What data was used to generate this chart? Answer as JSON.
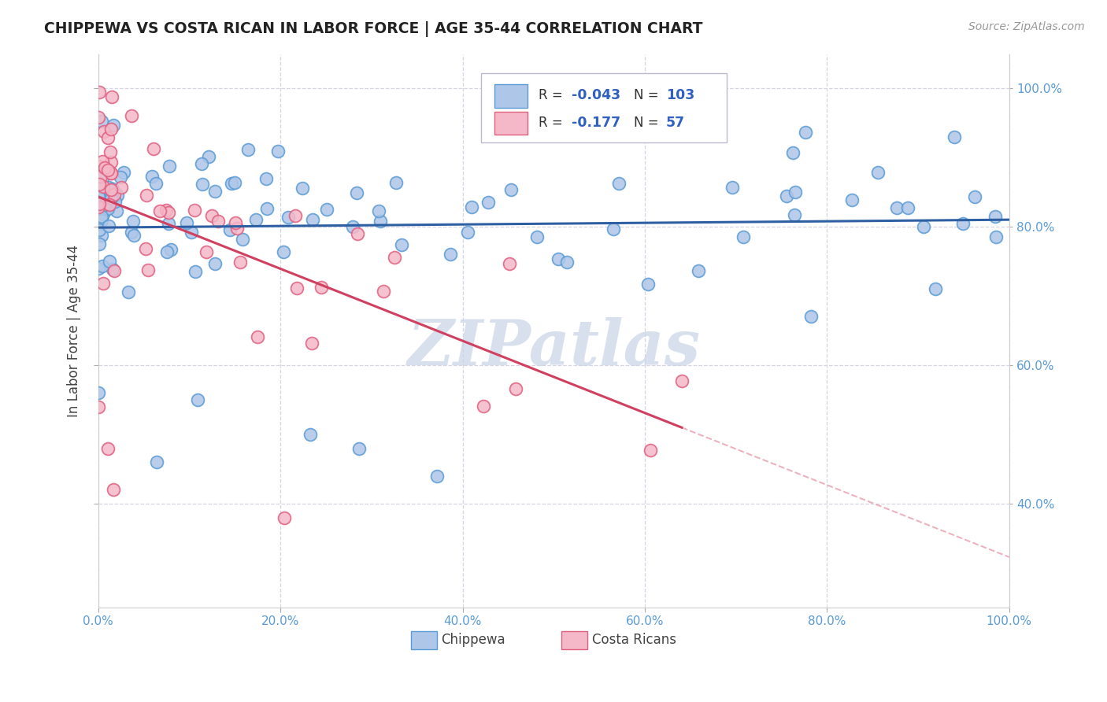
{
  "title": "CHIPPEWA VS COSTA RICAN IN LABOR FORCE | AGE 35-44 CORRELATION CHART",
  "source_text": "Source: ZipAtlas.com",
  "ylabel": "In Labor Force | Age 35-44",
  "xlim": [
    0.0,
    1.0
  ],
  "ylim": [
    0.25,
    1.05
  ],
  "chippewa_color": "#aec6e8",
  "chippewa_edge_color": "#5b9bd5",
  "costa_rican_color": "#f4b8c8",
  "costa_rican_edge_color": "#e06080",
  "chippewa_R": -0.043,
  "chippewa_N": 103,
  "costa_rican_R": -0.177,
  "costa_rican_N": 57,
  "chippewa_line_color": "#2e5fa3",
  "costa_rican_line_color": "#d04060",
  "costa_rican_line_dash_color": "#e8a0b0",
  "watermark_color": "#c8d4e8",
  "background_color": "#ffffff",
  "grid_color": "#ccccdd",
  "right_tick_color": "#5b9bd5",
  "legend_box_color": "#e8eef8",
  "legend_border_color": "#bbbbcc"
}
